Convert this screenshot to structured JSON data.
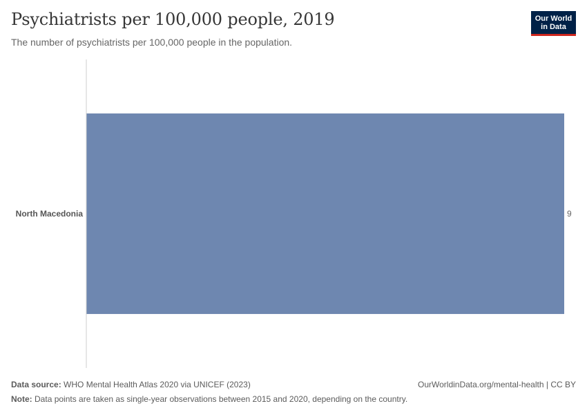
{
  "header": {
    "title": "Psychiatrists per 100,000 people, 2019",
    "subtitle": "The number of psychiatrists per 100,000 people in the population.",
    "logo_line1": "Our World",
    "logo_line2": "in Data"
  },
  "chart_data": {
    "type": "bar",
    "orientation": "horizontal",
    "title": "Psychiatrists per 100,000 people, 2019",
    "categories": [
      "North Macedonia"
    ],
    "values": [
      9
    ],
    "value_labels": [
      "9"
    ],
    "xlabel": "",
    "ylabel": "",
    "xlim": [
      0,
      9
    ],
    "grid": false,
    "bar_color": "#6e87b0"
  },
  "footer": {
    "source_label": "Data source:",
    "source_text": "WHO Mental Health Atlas 2020 via UNICEF (2023)",
    "note_label": "Note:",
    "note_text": "Data points are taken as single-year observations between 2015 and 2020, depending on the country.",
    "attribution": "OurWorldinData.org/mental-health | CC BY"
  },
  "colors": {
    "bar": "#6e87b0",
    "axis": "#cccccc",
    "logo_bg": "#002147",
    "logo_accent": "#ce261e"
  }
}
